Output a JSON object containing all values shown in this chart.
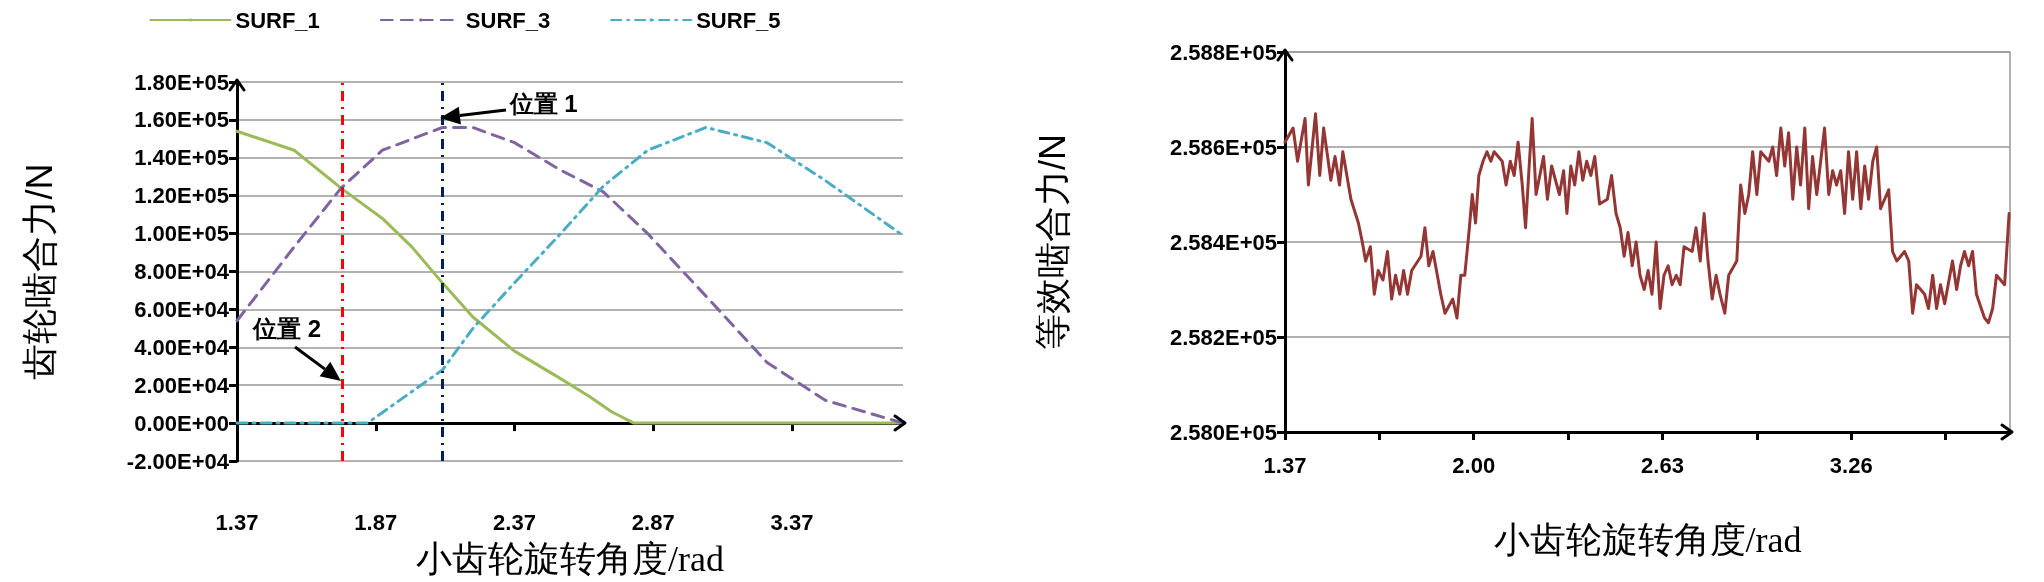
{
  "chart_data": [
    {
      "type": "line",
      "xlabel": "小齿轮旋转角度/rad",
      "ylabel": "齿轮啮合力/N",
      "xlim": [
        1.37,
        3.77
      ],
      "xticks": [
        1.37,
        1.87,
        2.37,
        2.87,
        3.37
      ],
      "ylim": [
        -20000,
        180000
      ],
      "yticks": [
        {
          "value": -20000,
          "label": "-2.00E+04"
        },
        {
          "value": 0,
          "label": "0.00E+00"
        },
        {
          "value": 20000,
          "label": "2.00E+04"
        },
        {
          "value": 40000,
          "label": "4.00E+04"
        },
        {
          "value": 60000,
          "label": "6.00E+04"
        },
        {
          "value": 80000,
          "label": "8.00E+04"
        },
        {
          "value": 100000,
          "label": "1.00E+05"
        },
        {
          "value": 120000,
          "label": "1.20E+05"
        },
        {
          "value": 140000,
          "label": "1.40E+05"
        },
        {
          "value": 160000,
          "label": "1.60E+05"
        },
        {
          "value": 180000,
          "label": "1.80E+05"
        }
      ],
      "grid": "y",
      "legend": "top",
      "marker": "none",
      "series": [
        {
          "name": "SURF_1",
          "color": "#9bbb59",
          "line_style": "solid",
          "x": [
            1.37,
            1.576,
            1.745,
            1.894,
            2.0,
            2.11,
            2.22,
            2.37,
            2.53,
            2.64,
            2.72,
            2.8,
            3.77
          ],
          "values": [
            154000,
            144000,
            124000,
            108000,
            93000,
            74000,
            56000,
            38000,
            24000,
            14000,
            6000,
            0,
            0
          ]
        },
        {
          "name": "SURF_3",
          "color": "#8064a2",
          "line_style": "dashed",
          "x": [
            1.37,
            1.576,
            1.745,
            1.894,
            2.11,
            2.22,
            2.37,
            2.53,
            2.69,
            2.85,
            3.06,
            3.28,
            3.49,
            3.77
          ],
          "values": [
            54000,
            93000,
            124000,
            144000,
            156000,
            156000,
            148000,
            134000,
            122000,
            100000,
            67000,
            32000,
            12000,
            0
          ]
        },
        {
          "name": "SURF_5",
          "color": "#4bacc6",
          "line_style": "dotted",
          "x": [
            1.37,
            1.84,
            2.11,
            2.22,
            2.37,
            2.53,
            2.69,
            2.85,
            3.06,
            3.28,
            3.49,
            3.77
          ],
          "values": [
            0,
            0,
            28000,
            50000,
            74000,
            99000,
            125000,
            144000,
            156000,
            148000,
            128000,
            99000
          ]
        }
      ],
      "ref_lines": [
        {
          "axis": "x",
          "value": 1.745,
          "color": "#ff0000",
          "line_style": "dotted"
        },
        {
          "axis": "x",
          "value": 2.11,
          "color": "#002060",
          "line_style": "dotted"
        }
      ],
      "annotations": [
        {
          "text": "位置 1",
          "x": 2.1,
          "y": 161000
        },
        {
          "text": "位置 2",
          "x": 1.745,
          "y": 22000
        }
      ]
    },
    {
      "type": "line",
      "xlabel": "小齿轮旋转角度/rad",
      "ylabel": "等效啮合力/N",
      "xlim": [
        1.37,
        3.79
      ],
      "xticks": [
        1.37,
        {
          "value": 1.685,
          "label": null
        },
        {
          "value": 2,
          "label": "2.00"
        },
        {
          "value": 2.315,
          "label": null
        },
        2.63,
        {
          "value": 2.945,
          "label": null
        },
        3.26,
        {
          "value": 3.575,
          "label": null
        }
      ],
      "ylim": [
        258000,
        258800
      ],
      "yticks": [
        {
          "value": 258000,
          "label": "2.580E+05"
        },
        {
          "value": 258200,
          "label": "2.582E+05"
        },
        {
          "value": 258400,
          "label": "2.584E+05"
        },
        {
          "value": 258600,
          "label": "2.586E+05"
        },
        {
          "value": 258800,
          "label": "2.588E+05"
        }
      ],
      "grid": "y",
      "marker": "none",
      "series": [
        {
          "color": "#943634",
          "line_style": "solid",
          "x": [
            1.37,
            1.397,
            1.412,
            1.437,
            1.448,
            1.472,
            1.486,
            1.499,
            1.523,
            1.537,
            1.552,
            1.563,
            1.59,
            1.615,
            1.628,
            1.639,
            1.655,
            1.668,
            1.681,
            1.697,
            1.712,
            1.726,
            1.739,
            1.753,
            1.766,
            1.779,
            1.793,
            1.824,
            1.837,
            1.85,
            1.864,
            1.89,
            1.904,
            1.93,
            1.944,
            1.957,
            1.97,
            1.984,
            1.995,
            2.006,
            2.017,
            2.031,
            2.044,
            2.057,
            2.068,
            2.095,
            2.108,
            2.122,
            2.135,
            2.148,
            2.162,
            2.173,
            2.186,
            2.195,
            2.208,
            2.233,
            2.246,
            2.26,
            2.286,
            2.3,
            2.311,
            2.324,
            2.337,
            2.351,
            2.364,
            2.377,
            2.391,
            2.404,
            2.42,
            2.446,
            2.46,
            2.475,
            2.489,
            2.502,
            2.515,
            2.529,
            2.542,
            2.555,
            2.569,
            2.582,
            2.595,
            2.609,
            2.622,
            2.635,
            2.649,
            2.662,
            2.676,
            2.689,
            2.702,
            2.729,
            2.742,
            2.756,
            2.769,
            2.782,
            2.796,
            2.809,
            2.822,
            2.838,
            2.851,
            2.878,
            2.891,
            2.905,
            2.918,
            2.931,
            2.945,
            2.958,
            2.985,
            2.998,
            3.011,
            3.025,
            3.038,
            3.051,
            3.065,
            3.078,
            3.091,
            3.105,
            3.118,
            3.131,
            3.145,
            3.171,
            3.185,
            3.198,
            3.211,
            3.225,
            3.238,
            3.251,
            3.265,
            3.278,
            3.292,
            3.305,
            3.318,
            3.332,
            3.345,
            3.358,
            3.385,
            3.398,
            3.412,
            3.438,
            3.452,
            3.465,
            3.478,
            3.505,
            3.518,
            3.532,
            3.545,
            3.558,
            3.572,
            3.598,
            3.612,
            3.625,
            3.638,
            3.652,
            3.665,
            3.678,
            3.705,
            3.718,
            3.732,
            3.745,
            3.772,
            3.787
          ],
          "values": [
            258610,
            258640,
            258570,
            258660,
            258520,
            258670,
            258540,
            258640,
            258530,
            258580,
            258520,
            258590,
            258490,
            258440,
            258400,
            258360,
            258390,
            258290,
            258340,
            258320,
            258380,
            258280,
            258330,
            258290,
            258340,
            258290,
            258340,
            258370,
            258430,
            258350,
            258380,
            258290,
            258250,
            258280,
            258240,
            258330,
            258330,
            258420,
            258500,
            258440,
            258540,
            258570,
            258590,
            258570,
            258590,
            258570,
            258520,
            258570,
            258540,
            258610,
            258520,
            258430,
            258570,
            258660,
            258500,
            258580,
            258490,
            258560,
            258500,
            258550,
            258460,
            258560,
            258520,
            258590,
            258530,
            258570,
            258540,
            258580,
            258480,
            258490,
            258540,
            258460,
            258430,
            258370,
            258420,
            258350,
            258400,
            258330,
            258300,
            258340,
            258290,
            258400,
            258260,
            258330,
            258350,
            258310,
            258330,
            258310,
            258390,
            258380,
            258430,
            258360,
            258460,
            258360,
            258280,
            258330,
            258290,
            258250,
            258330,
            258360,
            258520,
            258460,
            258500,
            258590,
            258500,
            258590,
            258570,
            258600,
            258540,
            258640,
            258560,
            258630,
            258490,
            258600,
            258520,
            258640,
            258470,
            258580,
            258500,
            258640,
            258500,
            258550,
            258520,
            258550,
            258460,
            258590,
            258490,
            258590,
            258470,
            258560,
            258490,
            258570,
            258600,
            258470,
            258510,
            258380,
            258360,
            258380,
            258360,
            258250,
            258310,
            258290,
            258260,
            258330,
            258260,
            258310,
            258270,
            258360,
            258300,
            258350,
            258380,
            258350,
            258380,
            258290,
            258240,
            258230,
            258260,
            258330,
            258310,
            258460
          ]
        }
      ]
    }
  ]
}
